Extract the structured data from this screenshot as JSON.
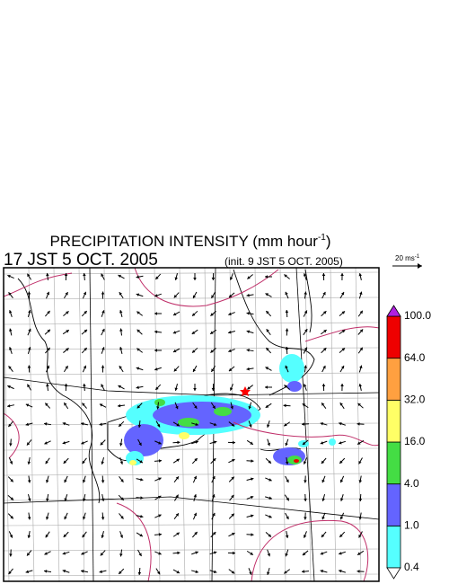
{
  "title": {
    "main": "PRECIPITATION INTENSITY (mm hour",
    "sup": "-1",
    "close": ")"
  },
  "valid_time": "17 JST 5 OCT. 2005",
  "init_time": "(init. 9 JST 5 OCT. 2005)",
  "vector_scale": {
    "label": "20 ms",
    "sup": "-1"
  },
  "colorbar": {
    "labels": [
      "0.4",
      "1.0",
      "4.0",
      "16.0",
      "32.0",
      "64.0",
      "100.0"
    ],
    "colors": [
      "#55ffff",
      "#6464ff",
      "#44dd44",
      "#ffff66",
      "#ffa040",
      "#ee0000"
    ],
    "over_color": "#b020e0",
    "under_color": "#ffffff"
  }
}
